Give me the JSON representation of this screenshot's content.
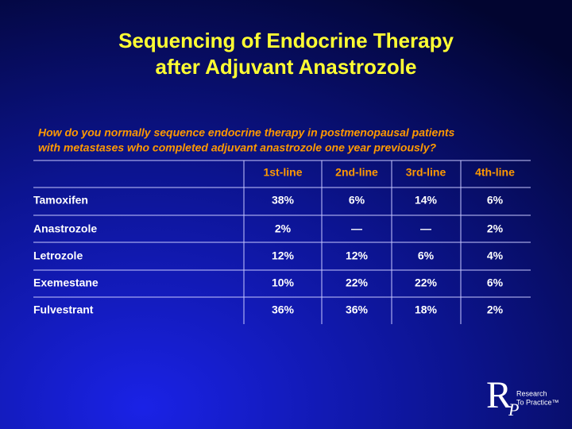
{
  "header": {
    "title_lines": [
      "Sequencing of Endocrine Therapy",
      "after Adjuvant Anastrozole"
    ]
  },
  "question_lines": [
    "How do you normally sequence endocrine therapy in postmenopausal patients",
    "with metastases who completed adjuvant anastrozole one year previously?"
  ],
  "table": {
    "columns": [
      "1st-line",
      "2nd-line",
      "3rd-line",
      "4th-line"
    ],
    "rows": [
      [
        "Tamoxifen",
        "38%",
        "6%",
        "14%",
        "6%"
      ],
      [
        "Anastrozole",
        "2%",
        "—",
        "—",
        "2%"
      ],
      [
        "Letrozole",
        "12%",
        "12%",
        "6%",
        "4%"
      ],
      [
        "Exemestane",
        "10%",
        "22%",
        "22%",
        "6%"
      ],
      [
        "Fulvestrant",
        "36%",
        "36%",
        "18%",
        "2%"
      ]
    ]
  },
  "logo": {
    "letter_r": "R",
    "letter_p": "P",
    "line1": "Research",
    "line2": "To Practice™"
  }
}
